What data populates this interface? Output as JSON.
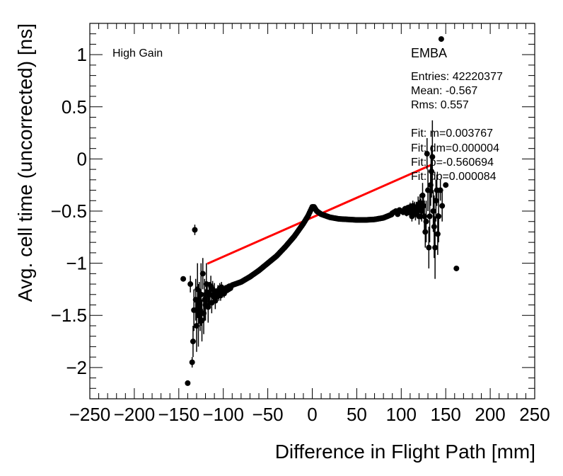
{
  "chart_data": {
    "type": "scatter",
    "xlabel": "Difference in Flight Path [mm]",
    "ylabel": "Avg. cell time (uncorrected) [ns]",
    "xlim": [
      -250,
      250
    ],
    "ylim": [
      -2.3,
      1.3
    ],
    "x_ticks": [
      -250,
      -200,
      -150,
      -100,
      -50,
      0,
      50,
      100,
      150,
      200,
      250
    ],
    "x_tick_labels": [
      "−250",
      "−200",
      "−150",
      "−100",
      "−50",
      "0",
      "50",
      "100",
      "150",
      "200",
      "250"
    ],
    "y_ticks": [
      -2,
      -1.5,
      -1,
      -0.5,
      0,
      0.5,
      1
    ],
    "y_tick_labels": [
      "−2",
      "−1.5",
      "−1",
      "−0.5",
      "0",
      "0.5",
      "1"
    ],
    "grid": false,
    "gain_label": "High Gain",
    "stats": {
      "title": "EMBA",
      "entries": "Entries: 42220377",
      "mean": "Mean: -0.567",
      "rms": "Rms: 0.557",
      "fit_m": "Fit: m=0.003767",
      "fit_dm": "Fit: dm=0.000004",
      "fit_b": "Fit: b=-0.560694",
      "fit_db": "Fit: db=0.000084"
    },
    "fit": {
      "slope": 0.003767,
      "intercept": -0.560694,
      "x_range": [
        -118,
        134
      ],
      "color": "#ff0000"
    },
    "series": [
      {
        "marker_color": "#000000",
        "points": [
          [
            -145,
            -1.15,
            0
          ],
          [
            -140,
            -2.15,
            0
          ],
          [
            -137,
            -1.2,
            0.08
          ],
          [
            -135,
            -1.95,
            0.05
          ],
          [
            -134,
            -1.75,
            0.15
          ],
          [
            -133,
            -1.45,
            0.2
          ],
          [
            -132,
            -0.68,
            0.05
          ],
          [
            -131,
            -1.35,
            0.2
          ],
          [
            -130,
            -1.6,
            0.25
          ],
          [
            -129,
            -1.25,
            0.25
          ],
          [
            -128,
            -1.5,
            0.3
          ],
          [
            -127,
            -1.38,
            0.2
          ],
          [
            -126,
            -1.45,
            0.2
          ],
          [
            -125,
            -1.3,
            0.3
          ],
          [
            -124,
            -1.55,
            0.2
          ],
          [
            -123,
            -1.1,
            0.15
          ],
          [
            -122,
            -1.48,
            0.2
          ],
          [
            -121,
            -1.35,
            0.2
          ],
          [
            -120,
            -1.4,
            0.15
          ],
          [
            -119,
            -1.2,
            0.2
          ],
          [
            -118,
            -1.28,
            0.1
          ],
          [
            -117,
            -1.42,
            0.15
          ],
          [
            -116,
            -1.3,
            0.12
          ],
          [
            -115,
            -1.3,
            0.12
          ],
          [
            -114,
            -1.22,
            0.1
          ],
          [
            -113,
            -1.38,
            0.1
          ],
          [
            -112,
            -1.25,
            0.08
          ],
          [
            -111,
            -1.32,
            0.08
          ],
          [
            -110,
            -1.27,
            0.08
          ],
          [
            -109,
            -1.36,
            0.08
          ],
          [
            -108,
            -1.3,
            0.06
          ],
          [
            -107,
            -1.32,
            0.06
          ],
          [
            -106,
            -1.27,
            0.06
          ],
          [
            -105,
            -1.3,
            0.06
          ],
          [
            -104,
            -1.24,
            0.05
          ],
          [
            -103,
            -1.31,
            0.05
          ],
          [
            -102,
            -1.23,
            0.05
          ],
          [
            -101,
            -1.28,
            0.04
          ],
          [
            -100,
            -1.26,
            0.04
          ],
          [
            -99,
            -1.29,
            0.04
          ],
          [
            -98,
            -1.25,
            0.04
          ],
          [
            -97,
            -1.24,
            0.03
          ],
          [
            -96,
            -1.26,
            0.03
          ],
          [
            -95,
            -1.23,
            0.03
          ],
          [
            -94,
            -1.25,
            0.03
          ],
          [
            -93,
            -1.22,
            0.02
          ],
          [
            -92,
            -1.24,
            0.02
          ],
          [
            -91,
            -1.22,
            0.02
          ],
          [
            90,
            -0.52,
            0.02
          ],
          [
            92,
            -0.51,
            0.02
          ],
          [
            94,
            -0.5,
            0.02
          ],
          [
            96,
            -0.53,
            0.02
          ],
          [
            98,
            -0.49,
            0.02
          ],
          [
            100,
            -0.5,
            0.02
          ],
          [
            102,
            -0.51,
            0.03
          ],
          [
            104,
            -0.48,
            0.03
          ],
          [
            106,
            -0.52,
            0.03
          ],
          [
            107,
            -0.47,
            0.03
          ],
          [
            108,
            -0.5,
            0.04
          ],
          [
            109,
            -0.49,
            0.04
          ],
          [
            110,
            -0.46,
            0.04
          ],
          [
            111,
            -0.52,
            0.04
          ],
          [
            112,
            -0.55,
            0.05
          ],
          [
            113,
            -0.45,
            0.05
          ],
          [
            114,
            -0.5,
            0.06
          ],
          [
            115,
            -0.47,
            0.06
          ],
          [
            116,
            -0.53,
            0.06
          ],
          [
            117,
            -0.48,
            0.07
          ],
          [
            118,
            -0.5,
            0.07
          ],
          [
            119,
            -0.44,
            0.08
          ],
          [
            120,
            -0.55,
            0.08
          ],
          [
            121,
            -0.42,
            0.08
          ],
          [
            122,
            -0.48,
            0.1
          ],
          [
            123,
            -0.5,
            0.1
          ],
          [
            124,
            -0.35,
            0.12
          ],
          [
            125,
            -0.45,
            0.12
          ],
          [
            126,
            -0.55,
            0.15
          ],
          [
            127,
            -0.7,
            0.15
          ],
          [
            128,
            -0.6,
            0.2
          ],
          [
            129,
            0.05,
            0.15
          ],
          [
            130,
            -0.3,
            0.2
          ],
          [
            131,
            -0.85,
            0.2
          ],
          [
            132,
            -0.55,
            0.25
          ],
          [
            133,
            -0.25,
            0.2
          ],
          [
            134,
            -0.12,
            0.25
          ],
          [
            135,
            0.02,
            0.35
          ],
          [
            136,
            -0.5,
            0.2
          ],
          [
            137,
            -0.65,
            0.3
          ],
          [
            138,
            -0.85,
            0.3
          ],
          [
            139,
            -0.4,
            0.2
          ],
          [
            140,
            -0.3,
            0.15
          ],
          [
            141,
            -0.72,
            0.2
          ],
          [
            142,
            -0.55,
            0.25
          ],
          [
            144,
            -0.3,
            0.1
          ],
          [
            145,
            1.15,
            0
          ],
          [
            146,
            -0.45,
            0.15
          ],
          [
            150,
            -0.25,
            0
          ],
          [
            162,
            -1.05,
            0
          ]
        ]
      }
    ],
    "curve": [
      [
        -90,
        -1.21
      ],
      [
        -80,
        -1.18
      ],
      [
        -70,
        -1.13
      ],
      [
        -60,
        -1.07
      ],
      [
        -50,
        -1.0
      ],
      [
        -40,
        -0.93
      ],
      [
        -30,
        -0.84
      ],
      [
        -20,
        -0.74
      ],
      [
        -10,
        -0.62
      ],
      [
        -5,
        -0.55
      ],
      [
        0,
        -0.46
      ],
      [
        2,
        -0.46
      ],
      [
        5,
        -0.5
      ],
      [
        10,
        -0.53
      ],
      [
        20,
        -0.56
      ],
      [
        30,
        -0.575
      ],
      [
        40,
        -0.58
      ],
      [
        50,
        -0.585
      ],
      [
        60,
        -0.585
      ],
      [
        70,
        -0.58
      ],
      [
        80,
        -0.565
      ],
      [
        90,
        -0.53
      ]
    ]
  }
}
